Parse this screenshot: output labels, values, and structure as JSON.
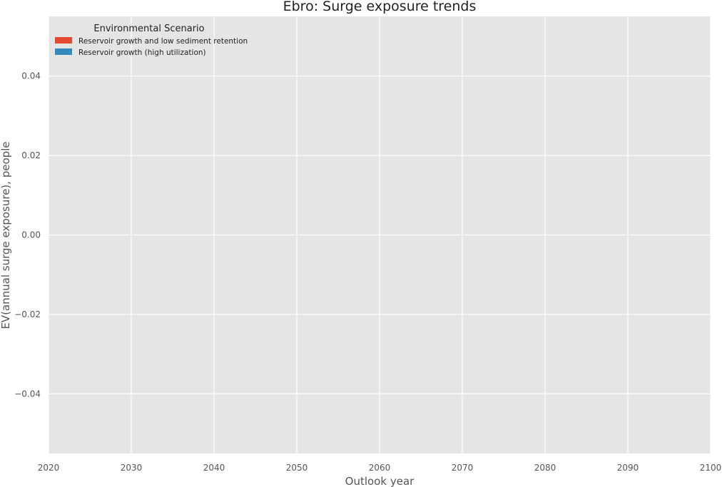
{
  "chart_data": {
    "type": "area",
    "title": "Ebro: Surge exposure trends",
    "xlabel": "Outlook year",
    "ylabel": "EV(annual surge exposure), people",
    "xlim": [
      2020,
      2100
    ],
    "ylim": [
      -0.055,
      0.055
    ],
    "x_ticks": [
      2020,
      2030,
      2040,
      2050,
      2060,
      2070,
      2080,
      2090,
      2100
    ],
    "y_ticks": [
      -0.04,
      -0.02,
      0.0,
      0.02,
      0.04
    ],
    "x_tick_labels": [
      "2020",
      "2030",
      "2040",
      "2050",
      "2060",
      "2070",
      "2080",
      "2090",
      "2100"
    ],
    "y_tick_labels": [
      "−0.04",
      "−0.02",
      "0.00",
      "0.02",
      "0.04"
    ],
    "grid": true,
    "legend": {
      "title": "Environmental Scenario",
      "position": "top-left",
      "entries": [
        {
          "name": "Reservoir growth and low sediment retention",
          "color": "#E24A33"
        },
        {
          "name": "Reservoir growth (high utilization)",
          "color": "#348ABD"
        }
      ]
    },
    "series": [
      {
        "name": "Reservoir growth and low sediment retention",
        "x": [],
        "values": []
      },
      {
        "name": "Reservoir growth (high utilization)",
        "x": [],
        "values": []
      }
    ]
  },
  "colors": {
    "plot_background": "#E5E5E5",
    "grid": "#FFFFFF"
  }
}
